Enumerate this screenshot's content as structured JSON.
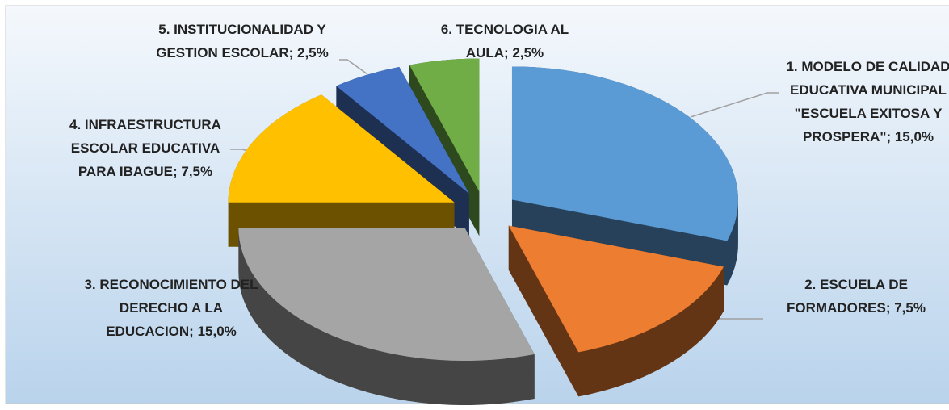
{
  "chart_data": {
    "type": "pie3d",
    "label_separator": "; ",
    "categories": [
      "1. MODELO DE CALIDAD EDUCATIVA MUNICIPAL \"ESCUELA EXITOSA Y PROSPERA\"",
      "2. ESCUELA DE FORMADORES",
      "3. RECONOCIMIENTO DEL DERECHO A LA EDUCACION",
      "4. INFRAESTRUCTURA ESCOLAR EDUCATIVA PARA IBAGUE",
      "5. INSTITUCIONALIDAD Y GESTION ESCOLAR",
      "6. TECNOLOGIA AL AULA"
    ],
    "values": [
      15,
      7.5,
      15,
      7.5,
      2.5,
      2.5
    ],
    "value_labels": [
      "15,0%",
      "7,5%",
      "15,0%",
      "7,5%",
      "2,5%",
      "2,5%"
    ],
    "colors": [
      "#5b9bd5",
      "#ed7d31",
      "#a5a5a5",
      "#ffc000",
      "#4472c4",
      "#70ad47"
    ]
  }
}
